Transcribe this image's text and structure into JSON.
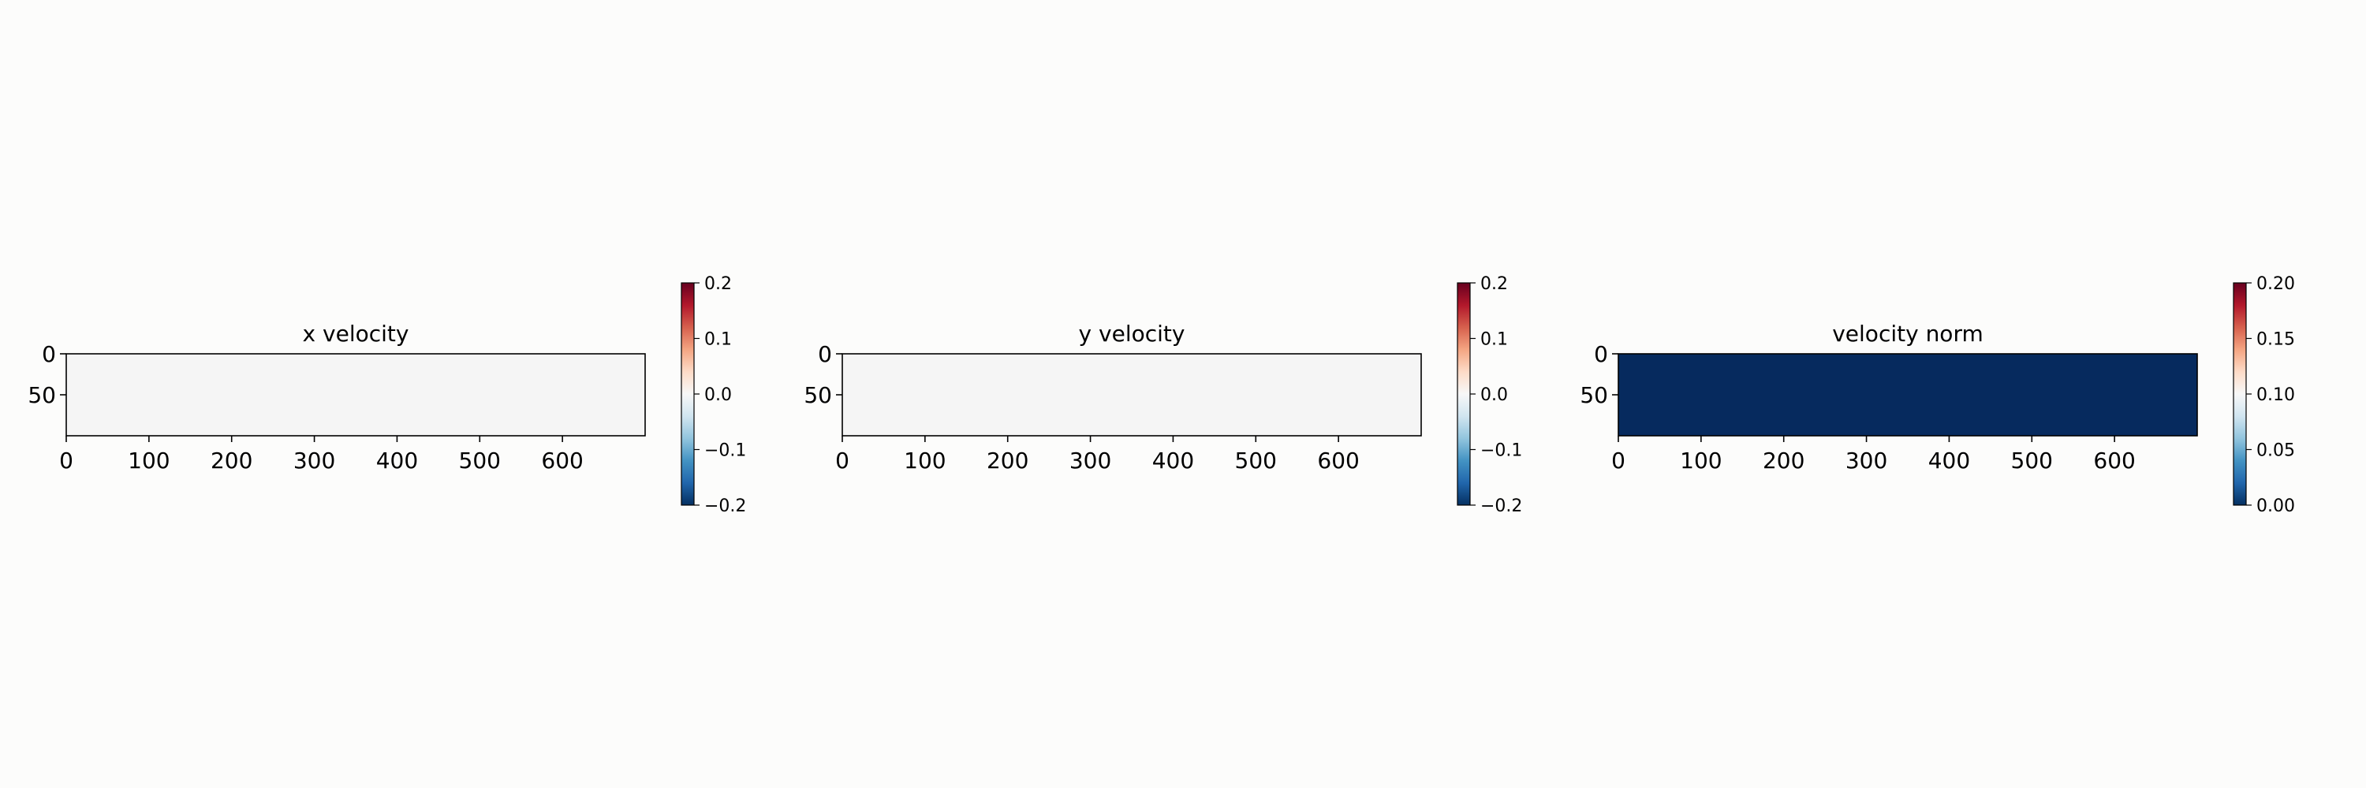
{
  "chart_data": [
    {
      "type": "heatmap",
      "title": "x velocity",
      "xlabel": "",
      "ylabel": "",
      "xlim": [
        0,
        700
      ],
      "ylim": [
        100,
        0
      ],
      "xticks": [
        "0",
        "100",
        "200",
        "300",
        "400",
        "500",
        "600"
      ],
      "yticks": [
        "0",
        "50"
      ],
      "field_value": 0.0,
      "field_color": "#f5f5f5",
      "colormap": "RdBu_r",
      "colorbar": {
        "range": [
          -0.2,
          0.2
        ],
        "ticks": [
          0.2,
          0.1,
          0.0,
          -0.1,
          -0.2
        ],
        "tick_labels": [
          "0.2",
          "0.1",
          "0.0",
          "−0.1",
          "−0.2"
        ]
      }
    },
    {
      "type": "heatmap",
      "title": "y velocity",
      "xlabel": "",
      "ylabel": "",
      "xlim": [
        0,
        700
      ],
      "ylim": [
        100,
        0
      ],
      "xticks": [
        "0",
        "100",
        "200",
        "300",
        "400",
        "500",
        "600"
      ],
      "yticks": [
        "0",
        "50"
      ],
      "field_value": 0.0,
      "field_color": "#f5f5f5",
      "colormap": "RdBu_r",
      "colorbar": {
        "range": [
          -0.2,
          0.2
        ],
        "ticks": [
          0.2,
          0.1,
          0.0,
          -0.1,
          -0.2
        ],
        "tick_labels": [
          "0.2",
          "0.1",
          "0.0",
          "−0.1",
          "−0.2"
        ]
      }
    },
    {
      "type": "heatmap",
      "title": "velocity norm",
      "xlabel": "",
      "ylabel": "",
      "xlim": [
        0,
        700
      ],
      "ylim": [
        100,
        0
      ],
      "xticks": [
        "0",
        "100",
        "200",
        "300",
        "400",
        "500",
        "600"
      ],
      "yticks": [
        "0",
        "50"
      ],
      "field_value": 0.0,
      "field_color": "#062a5e",
      "colormap": "RdBu_r",
      "colorbar": {
        "range": [
          0.0,
          0.2
        ],
        "ticks": [
          0.2,
          0.15,
          0.1,
          0.05,
          0.0
        ],
        "tick_labels": [
          "0.20",
          "0.15",
          "0.10",
          "0.05",
          "0.00"
        ]
      }
    }
  ],
  "colormap_stops": [
    "#67001f",
    "#b2182b",
    "#d6604d",
    "#f4a582",
    "#fddbc7",
    "#f7f7f7",
    "#d1e5f0",
    "#92c5de",
    "#4393c3",
    "#2166ac",
    "#053061"
  ]
}
